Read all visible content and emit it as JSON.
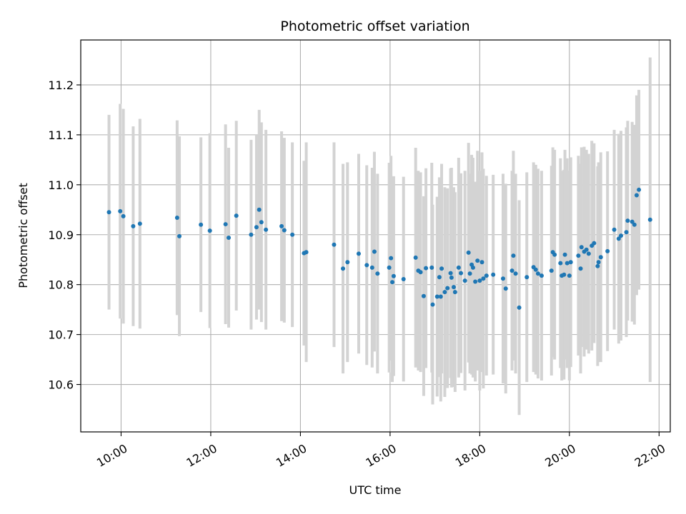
{
  "chart_data": {
    "type": "scatter",
    "title": "Photometric offset variation",
    "xlabel": "UTC time",
    "ylabel": "Photometric offset",
    "xlim": [
      9.1,
      22.25
    ],
    "ylim": [
      10.505,
      11.29
    ],
    "grid": true,
    "x_tick_values": [
      10,
      12,
      14,
      16,
      18,
      20,
      22
    ],
    "x_tick_labels": [
      "10:00",
      "12:00",
      "14:00",
      "16:00",
      "18:00",
      "20:00",
      "22:00"
    ],
    "y_tick_values": [
      10.6,
      10.7,
      10.8,
      10.9,
      11.0,
      11.1,
      11.2
    ],
    "y_tick_labels": [
      "10.6",
      "10.7",
      "10.8",
      "10.9",
      "11.0",
      "11.1",
      "11.2"
    ],
    "colors": {
      "points": "#1f77b4",
      "errorbars": "#d3d3d3",
      "grid": "#b0b0b0"
    },
    "points": [
      [
        9.73,
        10.945,
        0.195
      ],
      [
        9.98,
        10.947,
        0.215
      ],
      [
        10.05,
        10.937,
        0.215
      ],
      [
        10.27,
        10.917,
        0.2
      ],
      [
        10.42,
        10.922,
        0.21
      ],
      [
        11.25,
        10.934,
        0.195
      ],
      [
        11.3,
        10.897,
        0.2
      ],
      [
        11.78,
        10.92,
        0.175
      ],
      [
        11.98,
        10.908,
        0.195
      ],
      [
        12.33,
        10.921,
        0.2
      ],
      [
        12.4,
        10.894,
        0.18
      ],
      [
        12.57,
        10.938,
        0.19
      ],
      [
        12.9,
        10.9,
        0.19
      ],
      [
        13.02,
        10.915,
        0.185
      ],
      [
        13.08,
        10.95,
        0.2
      ],
      [
        13.13,
        10.925,
        0.2
      ],
      [
        13.23,
        10.91,
        0.2
      ],
      [
        13.58,
        10.917,
        0.19
      ],
      [
        13.64,
        10.909,
        0.185
      ],
      [
        13.82,
        10.9,
        0.185
      ],
      [
        14.08,
        10.863,
        0.185
      ],
      [
        14.13,
        10.865,
        0.22
      ],
      [
        14.75,
        10.88,
        0.205
      ],
      [
        14.95,
        10.832,
        0.21
      ],
      [
        15.05,
        10.845,
        0.2
      ],
      [
        15.3,
        10.862,
        0.2
      ],
      [
        15.48,
        10.839,
        0.2
      ],
      [
        15.6,
        10.834,
        0.2
      ],
      [
        15.65,
        10.866,
        0.2
      ],
      [
        15.72,
        10.822,
        0.2
      ],
      [
        15.98,
        10.834,
        0.21
      ],
      [
        16.02,
        10.853,
        0.205
      ],
      [
        16.05,
        10.805,
        0.2
      ],
      [
        16.08,
        10.817,
        0.2
      ],
      [
        16.3,
        10.811,
        0.205
      ],
      [
        16.57,
        10.854,
        0.22
      ],
      [
        16.63,
        10.828,
        0.2
      ],
      [
        16.68,
        10.825,
        0.2
      ],
      [
        16.75,
        10.777,
        0.2
      ],
      [
        16.8,
        10.833,
        0.2
      ],
      [
        16.93,
        10.834,
        0.21
      ],
      [
        16.95,
        10.76,
        0.2
      ],
      [
        17.05,
        10.776,
        0.2
      ],
      [
        17.1,
        10.815,
        0.2
      ],
      [
        17.13,
        10.776,
        0.21
      ],
      [
        17.15,
        10.832,
        0.21
      ],
      [
        17.22,
        10.785,
        0.21
      ],
      [
        17.28,
        10.793,
        0.2
      ],
      [
        17.35,
        10.823,
        0.21
      ],
      [
        17.37,
        10.814,
        0.22
      ],
      [
        17.42,
        10.795,
        0.2
      ],
      [
        17.45,
        10.785,
        0.2
      ],
      [
        17.53,
        10.834,
        0.22
      ],
      [
        17.58,
        10.823,
        0.2
      ],
      [
        17.67,
        10.808,
        0.22
      ],
      [
        17.75,
        10.864,
        0.22
      ],
      [
        17.78,
        10.822,
        0.2
      ],
      [
        17.82,
        10.84,
        0.22
      ],
      [
        17.85,
        10.834,
        0.22
      ],
      [
        17.9,
        10.806,
        0.2
      ],
      [
        17.95,
        10.848,
        0.22
      ],
      [
        18.0,
        10.808,
        0.22
      ],
      [
        18.05,
        10.845,
        0.22
      ],
      [
        18.08,
        10.812,
        0.22
      ],
      [
        18.15,
        10.818,
        0.2
      ],
      [
        18.3,
        10.82,
        0.2
      ],
      [
        18.52,
        10.812,
        0.21
      ],
      [
        18.58,
        10.792,
        0.21
      ],
      [
        18.72,
        10.828,
        0.2
      ],
      [
        18.75,
        10.858,
        0.21
      ],
      [
        18.8,
        10.822,
        0.2
      ],
      [
        18.88,
        10.754,
        0.215
      ],
      [
        19.05,
        10.815,
        0.21
      ],
      [
        19.2,
        10.835,
        0.21
      ],
      [
        19.25,
        10.83,
        0.21
      ],
      [
        19.3,
        10.822,
        0.21
      ],
      [
        19.38,
        10.818,
        0.21
      ],
      [
        19.6,
        10.828,
        0.21
      ],
      [
        19.63,
        10.865,
        0.21
      ],
      [
        19.67,
        10.86,
        0.21
      ],
      [
        19.8,
        10.843,
        0.21
      ],
      [
        19.83,
        10.818,
        0.21
      ],
      [
        19.88,
        10.82,
        0.21
      ],
      [
        19.9,
        10.86,
        0.21
      ],
      [
        19.95,
        10.843,
        0.21
      ],
      [
        20.0,
        10.818,
        0.21
      ],
      [
        20.03,
        10.845,
        0.21
      ],
      [
        20.2,
        10.858,
        0.2
      ],
      [
        20.25,
        10.832,
        0.21
      ],
      [
        20.27,
        10.875,
        0.2
      ],
      [
        20.33,
        10.866,
        0.21
      ],
      [
        20.38,
        10.87,
        0.2
      ],
      [
        20.43,
        10.862,
        0.2
      ],
      [
        20.5,
        10.878,
        0.21
      ],
      [
        20.55,
        10.883,
        0.2
      ],
      [
        20.63,
        10.837,
        0.2
      ],
      [
        20.65,
        10.845,
        0.2
      ],
      [
        20.7,
        10.855,
        0.21
      ],
      [
        20.85,
        10.867,
        0.2
      ],
      [
        21.0,
        10.91,
        0.2
      ],
      [
        21.1,
        10.892,
        0.21
      ],
      [
        21.15,
        10.898,
        0.21
      ],
      [
        21.27,
        10.905,
        0.21
      ],
      [
        21.3,
        10.928,
        0.2
      ],
      [
        21.4,
        10.926,
        0.2
      ],
      [
        21.45,
        10.92,
        0.2
      ],
      [
        21.5,
        10.979,
        0.2
      ],
      [
        21.55,
        10.99,
        0.2
      ],
      [
        21.8,
        10.93,
        0.325
      ]
    ]
  }
}
